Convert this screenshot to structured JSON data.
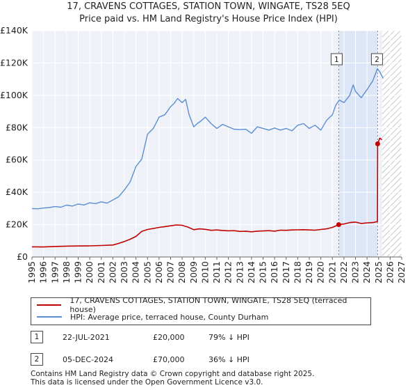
{
  "chart_data": {
    "type": "line",
    "title": "17, CRAVENS COTTAGES, STATION TOWN, WINGATE, TS28 5EQ",
    "subtitle": "Price paid vs. HM Land Registry's House Price Index (HPI)",
    "xlim": [
      1995,
      2027
    ],
    "ylim": [
      0,
      140000
    ],
    "x_ticks": [
      "1995",
      "1996",
      "1997",
      "1998",
      "1999",
      "2000",
      "2001",
      "2002",
      "2003",
      "2004",
      "2005",
      "2006",
      "2007",
      "2008",
      "2009",
      "2010",
      "2011",
      "2012",
      "2013",
      "2014",
      "2015",
      "2016",
      "2017",
      "2018",
      "2019",
      "2020",
      "2021",
      "2022",
      "2023",
      "2024",
      "2025",
      "2026",
      "2027"
    ],
    "y_ticks": [
      {
        "value": 0,
        "label": "£0"
      },
      {
        "value": 20000,
        "label": "£20K"
      },
      {
        "value": 40000,
        "label": "£40K"
      },
      {
        "value": 60000,
        "label": "£60K"
      },
      {
        "value": 80000,
        "label": "£80K"
      },
      {
        "value": 100000,
        "label": "£100K"
      },
      {
        "value": 120000,
        "label": "£120K"
      },
      {
        "value": 140000,
        "label": "£140K"
      }
    ],
    "shaded_period": [
      2021.55,
      2024.92
    ],
    "forecast_from": 2025.3,
    "series": [
      {
        "name": "17, CRAVENS COTTAGES, STATION TOWN, WINGATE, TS28 5EQ (terraced house)",
        "color": "#c00000",
        "x": [
          1995,
          1996,
          1997,
          1998,
          1999,
          2000,
          2001,
          2002,
          2002.5,
          2003,
          2003.5,
          2004,
          2004.5,
          2005,
          2005.5,
          2006,
          2006.5,
          2007,
          2007.5,
          2008,
          2008.5,
          2009,
          2009.5,
          2010,
          2010.5,
          2011,
          2011.5,
          2012,
          2012.5,
          2013,
          2013.5,
          2014,
          2014.5,
          2015,
          2015.5,
          2016,
          2016.5,
          2017,
          2017.5,
          2018,
          2018.5,
          2019,
          2019.5,
          2020,
          2020.5,
          2021,
          2021.55,
          2022,
          2022.5,
          2023,
          2023.5,
          2024,
          2024.5,
          2024.9,
          2024.92,
          2025.1,
          2025.3
        ],
        "y": [
          6300,
          6200,
          6500,
          6700,
          6800,
          6900,
          7100,
          7400,
          8400,
          9600,
          11000,
          12700,
          15800,
          17000,
          17600,
          18300,
          18800,
          19300,
          19800,
          19600,
          18500,
          16900,
          17400,
          17100,
          16500,
          16700,
          16400,
          16200,
          16300,
          15800,
          15900,
          15600,
          16000,
          16100,
          16300,
          16000,
          16600,
          16500,
          16700,
          16800,
          16900,
          16700,
          16600,
          17000,
          17400,
          18300,
          20000,
          20400,
          21300,
          21600,
          20700,
          21100,
          21300,
          21900,
          70000,
          73500,
          72500
        ]
      },
      {
        "name": "HPI: Average price, terraced house, County Durham",
        "color": "#5b8ed0",
        "x": [
          1995,
          1995.5,
          1996,
          1996.5,
          1997,
          1997.5,
          1998,
          1998.5,
          1999,
          1999.5,
          2000,
          2000.5,
          2001,
          2001.5,
          2002,
          2002.5,
          2003,
          2003.5,
          2004,
          2004.5,
          2005,
          2005.5,
          2006,
          2006.5,
          2007,
          2007.3,
          2007.6,
          2008,
          2008.3,
          2008.6,
          2009,
          2009.3,
          2009.6,
          2010,
          2010.5,
          2011,
          2011.5,
          2012,
          2012.5,
          2013,
          2013.5,
          2014,
          2014.5,
          2015,
          2015.5,
          2016,
          2016.5,
          2017,
          2017.5,
          2018,
          2018.5,
          2019,
          2019.5,
          2020,
          2020.5,
          2021,
          2021.3,
          2021.6,
          2022,
          2022.5,
          2022.8,
          2023,
          2023.5,
          2024,
          2024.5,
          2024.9,
          2025.1,
          2025.4
        ],
        "y": [
          30000,
          29800,
          30300,
          30600,
          31200,
          30800,
          32100,
          31500,
          32800,
          32200,
          33500,
          33000,
          34100,
          33300,
          35300,
          37200,
          41500,
          46500,
          56000,
          60500,
          76000,
          79500,
          86500,
          88000,
          93000,
          95000,
          98000,
          95500,
          97500,
          88000,
          80500,
          82500,
          84000,
          86500,
          82500,
          79500,
          82000,
          80500,
          79000,
          78800,
          79000,
          76500,
          80500,
          79500,
          78500,
          79800,
          78500,
          79500,
          78000,
          81500,
          82500,
          79500,
          81500,
          78500,
          84500,
          88000,
          94000,
          97000,
          95500,
          100000,
          106500,
          102500,
          98500,
          103500,
          109000,
          116500,
          114500,
          110500
        ]
      }
    ],
    "markers": [
      {
        "label": "1",
        "x": 2021.55,
        "y": 20000
      },
      {
        "label": "2",
        "x": 2024.92,
        "y": 70000
      }
    ]
  },
  "legend": {
    "items": [
      {
        "label": "17, CRAVENS COTTAGES, STATION TOWN, WINGATE, TS28 5EQ (terraced house)",
        "color": "#c00000"
      },
      {
        "label": "HPI: Average price, terraced house, County Durham",
        "color": "#5b8ed0"
      }
    ]
  },
  "transactions": [
    {
      "num": "1",
      "date": "22-JUL-2021",
      "price": "£20,000",
      "hpi": "79% ↓ HPI"
    },
    {
      "num": "2",
      "date": "05-DEC-2024",
      "price": "£70,000",
      "hpi": "36% ↓ HPI"
    }
  ],
  "footer": {
    "line1": "Contains HM Land Registry data © Crown copyright and database right 2025.",
    "line2": "This data is licensed under the Open Government Licence v3.0."
  }
}
